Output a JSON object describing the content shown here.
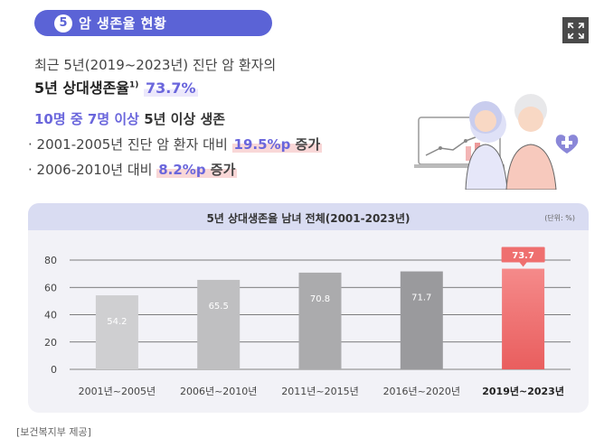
{
  "header": {
    "number": "5",
    "title": "암 생존율 현황"
  },
  "intro": {
    "line1": "최근 5년(2019~2023년) 진단 암 환자의",
    "survival_label": "5년 상대생존율",
    "footnote": "1)",
    "survival_value": "73.7%"
  },
  "highlights": {
    "headline_prefix": "10명 중 7명 이상",
    "headline_suffix": " 5년 이상 생존",
    "item1_text": "· 2001-2005년 진단 암 환자 대비 ",
    "item1_value": "19.5%p",
    "item1_tail": " 증가",
    "item2_text": "· 2006-2010년 대비 ",
    "item2_value": "8.2%p",
    "item2_tail": " 증가"
  },
  "chart_data": {
    "type": "bar",
    "title": "5년 상대생존율 남녀 전체(2001-2023년)",
    "unit": "(단위: %)",
    "categories": [
      "2001년~2005년",
      "2006년~2010년",
      "2011년~2015년",
      "2016년~2020년",
      "2019년~2023년"
    ],
    "values": [
      54.2,
      65.5,
      70.8,
      71.7,
      73.7
    ],
    "yticks": [
      0,
      20,
      40,
      60,
      80
    ],
    "ylim": [
      0,
      80
    ],
    "highlight_index": 4,
    "xlabel": "",
    "ylabel": ""
  },
  "colors": {
    "accent": "#5b63d6",
    "bar_gray_light": "#c9c9cb",
    "bar_gray_dark": "#8e8e93",
    "bar_highlight": "#ef6f6f"
  },
  "source": "[보건복지부 제공]"
}
